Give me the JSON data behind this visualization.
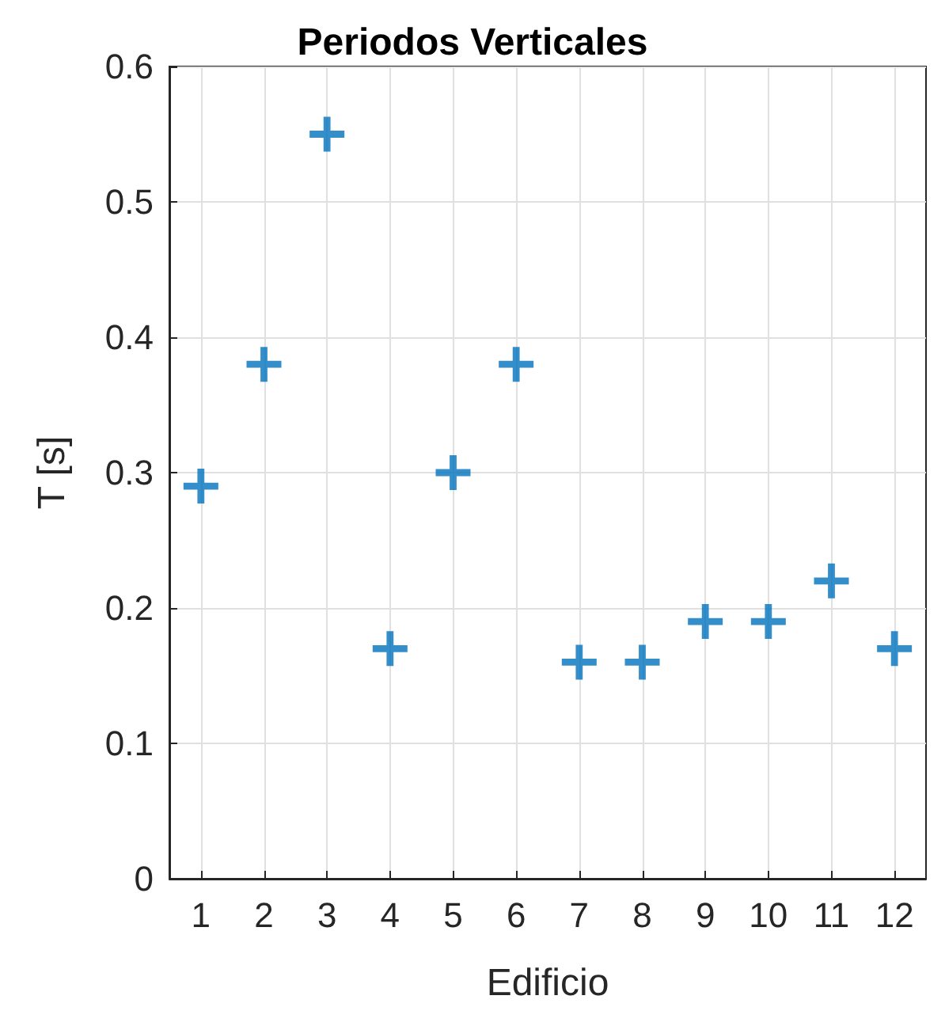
{
  "chart_data": {
    "type": "scatter",
    "title": "Periodos Verticales",
    "xlabel": "Edificio",
    "ylabel": "T [s]",
    "x": [
      1,
      2,
      3,
      4,
      5,
      6,
      7,
      8,
      9,
      10,
      11,
      12
    ],
    "series": [
      {
        "color": "#0072bd",
        "values": [
          0.29,
          0.38,
          0.55,
          0.17,
          0.3,
          0.38,
          0.16,
          0.16,
          0.19,
          0.19,
          0.22,
          0.17
        ]
      }
    ],
    "xlim": [
      0.5,
      12.5
    ],
    "xticks": [
      1,
      2,
      3,
      4,
      5,
      6,
      7,
      8,
      9,
      10,
      11,
      12
    ],
    "ylim": [
      0,
      0.6
    ],
    "yticks": [
      0,
      0.1,
      0.2,
      0.3,
      0.4,
      0.5,
      0.6
    ],
    "grid": true,
    "marker": "cross"
  }
}
